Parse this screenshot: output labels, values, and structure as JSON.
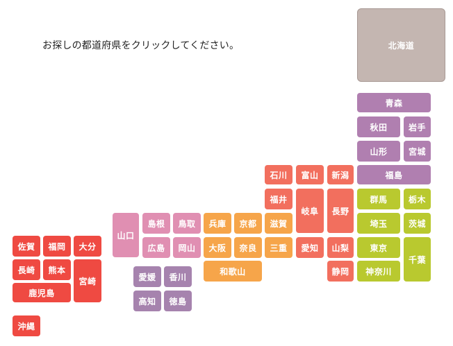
{
  "instruction": "お探しの都道府県をクリックしてください。",
  "region_colors": {
    "hokkaido": "#c4b6b1",
    "tohoku": "#b07fb0",
    "kanto": "#b9c92f",
    "chubu": "#f26f5e",
    "kinki": "#f6a54a",
    "chugoku": "#e08fb2",
    "shikoku": "#a683ae",
    "kyushu": "#ef4a42"
  },
  "prefectures": {
    "hokkaido": "北海道",
    "aomori": "青森",
    "akita": "秋田",
    "iwate": "岩手",
    "yamagata": "山形",
    "miyagi": "宮城",
    "fukushima": "福島",
    "gunma": "群馬",
    "tochigi": "栃木",
    "saitama": "埼玉",
    "ibaraki": "茨城",
    "tokyo": "東京",
    "chiba": "千葉",
    "kanagawa": "神奈川",
    "ishikawa": "石川",
    "toyama": "富山",
    "niigata": "新潟",
    "fukui": "福井",
    "gifu": "岐阜",
    "nagano": "長野",
    "aichi": "愛知",
    "yamanashi": "山梨",
    "shizuoka": "静岡",
    "hyogo": "兵庫",
    "kyoto": "京都",
    "shiga": "滋賀",
    "osaka": "大阪",
    "nara": "奈良",
    "mie": "三重",
    "wakayama": "和歌山",
    "yamaguchi": "山口",
    "shimane": "島根",
    "tottori": "鳥取",
    "hiroshima": "広島",
    "okayama": "岡山",
    "ehime": "愛媛",
    "kagawa": "香川",
    "kochi": "高知",
    "tokushima": "徳島",
    "saga": "佐賀",
    "fukuoka": "福岡",
    "oita": "大分",
    "nagasaki": "長崎",
    "kumamoto": "熊本",
    "miyazaki": "宮崎",
    "kagoshima": "鹿児島",
    "okinawa": "沖縄"
  }
}
